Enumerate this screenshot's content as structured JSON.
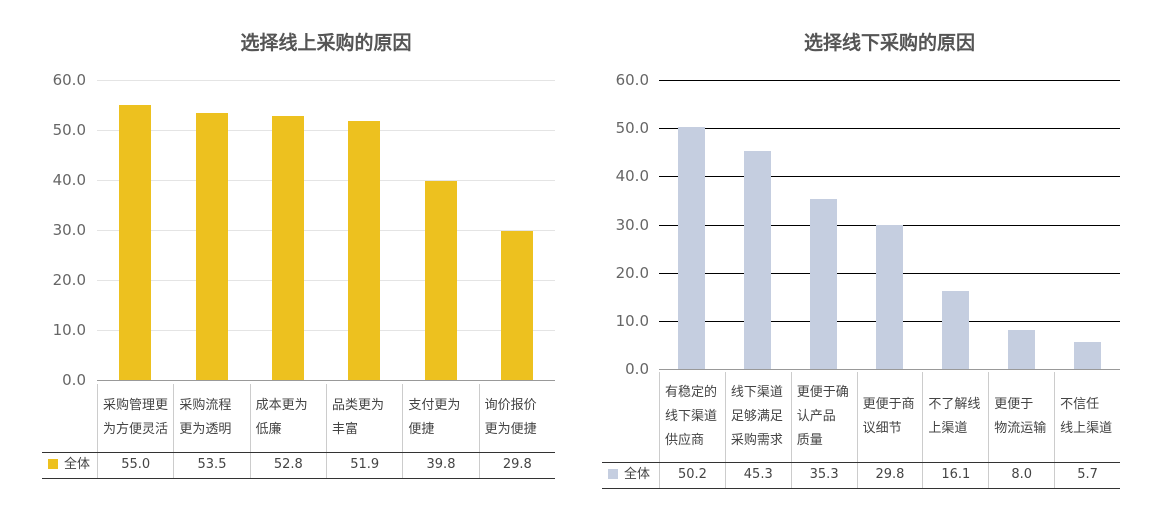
{
  "chart_data": [
    {
      "type": "bar",
      "title": "选择线上采购的原因",
      "categories": [
        "采购管理更为方便灵活",
        "采购流程更为透明",
        "成本更为低廉",
        "品类更为丰富",
        "支付更为便捷",
        "询价报价更为便捷"
      ],
      "category_lines": [
        [
          "采购管理更",
          "为方便灵活"
        ],
        [
          "采购流程",
          "更为透明"
        ],
        [
          "成本更为",
          "低廉"
        ],
        [
          "品类更为",
          "丰富"
        ],
        [
          "支付更为",
          "便捷"
        ],
        [
          "询价报价",
          "更为便捷"
        ]
      ],
      "series": [
        {
          "name": "全体",
          "values": [
            55.0,
            53.5,
            52.8,
            51.9,
            39.8,
            29.8
          ],
          "color": "#EDC11F"
        }
      ],
      "value_labels": [
        "55.0",
        "53.5",
        "52.8",
        "51.9",
        "39.8",
        "29.8"
      ],
      "yticks": [
        "0.0",
        "10.0",
        "20.0",
        "30.0",
        "40.0",
        "50.0",
        "60.0"
      ],
      "ylim": [
        0,
        60
      ],
      "grid": true,
      "legend": "bottom-left data table"
    },
    {
      "type": "bar",
      "title": "选择线下采购的原因",
      "categories": [
        "有稳定的线下渠道供应商",
        "线下渠道足够满足采购需求",
        "更便于确认产品质量",
        "更便于商议细节",
        "不了解线上渠道",
        "更便于物流运输",
        "不信任线上渠道"
      ],
      "category_lines": [
        [
          "有稳定的",
          "线下渠道",
          "供应商"
        ],
        [
          "线下渠道",
          "足够满足",
          "采购需求"
        ],
        [
          "更便于确",
          "认产品",
          "质量"
        ],
        [
          "更便于商",
          "议细节"
        ],
        [
          "不了解线",
          "上渠道"
        ],
        [
          "更便于",
          "物流运输"
        ],
        [
          "不信任",
          "线上渠道"
        ]
      ],
      "series": [
        {
          "name": "全体",
          "values": [
            50.2,
            45.3,
            35.3,
            29.8,
            16.1,
            8.0,
            5.7
          ],
          "color": "#C5CEE0"
        }
      ],
      "value_labels": [
        "50.2",
        "45.3",
        "35.3",
        "29.8",
        "16.1",
        "8.0",
        "5.7"
      ],
      "yticks": [
        "0.0",
        "10.0",
        "20.0",
        "30.0",
        "40.0",
        "50.0",
        "60.0"
      ],
      "ylim": [
        0,
        60
      ],
      "grid": true,
      "legend": "bottom-left data table"
    }
  ]
}
